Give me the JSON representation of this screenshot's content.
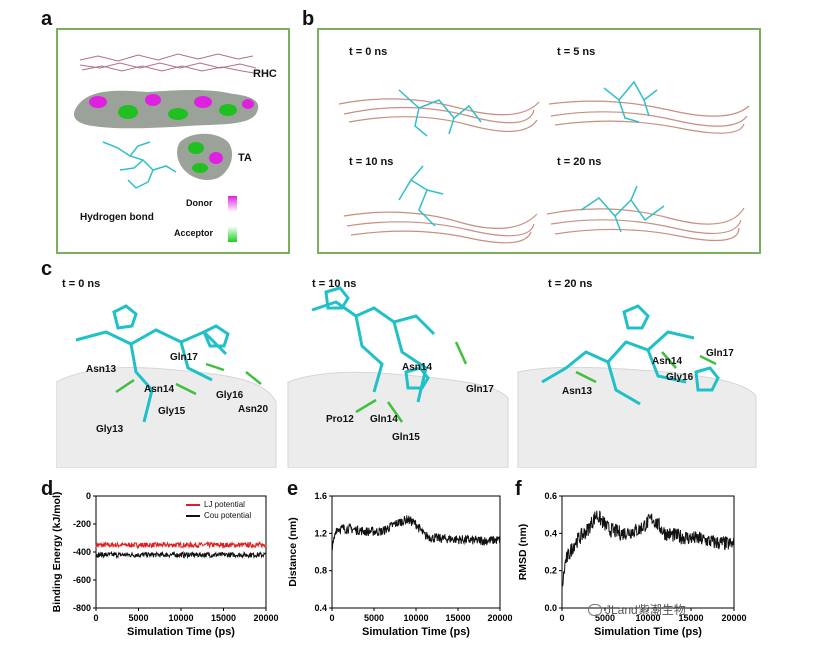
{
  "panels": {
    "a": {
      "letter": "a",
      "rhc_label": "RHC",
      "ta_label": "TA",
      "donor_label": "Donor",
      "acceptor_label": "Acceptor",
      "hbond_label": "Hydrogen bond",
      "colors": {
        "border": "#7bb05a",
        "donor": "#e020e0",
        "acceptor": "#20d020"
      }
    },
    "b": {
      "letter": "b",
      "times": [
        "t = 0 ns",
        "t = 5 ns",
        "t = 10 ns",
        "t = 20 ns"
      ]
    },
    "c": {
      "letter": "c",
      "frames": [
        {
          "time": "t = 0 ns",
          "residues": [
            "Gln17",
            "Asn13",
            "Asn14",
            "Gly16",
            "Gly15",
            "Asn20",
            "Gly13"
          ]
        },
        {
          "time": "t = 10 ns",
          "residues": [
            "Asn14",
            "Gln17",
            "Pro12",
            "Gln14",
            "Gln15"
          ]
        },
        {
          "time": "t = 20 ns",
          "residues": [
            "Asn14",
            "Gln17",
            "Gly16",
            "Asn13"
          ]
        }
      ]
    },
    "d": {
      "letter": "d"
    },
    "e": {
      "letter": "e"
    },
    "f": {
      "letter": "f"
    }
  },
  "watermark": "JLand紫潮生物",
  "chart_data": [
    {
      "type": "line",
      "panel": "d",
      "xlabel": "Simulation Time (ps)",
      "ylabel": "Binding Energy (kJ/mol)",
      "xlim": [
        0,
        20000
      ],
      "ylim": [
        -800,
        0
      ],
      "xticks": [
        "0",
        "5000",
        "10000",
        "15000",
        "20000"
      ],
      "yticks": [
        "0",
        "-200",
        "-400",
        "-600",
        "-800"
      ],
      "legend": "top-right",
      "series": [
        {
          "name": "LJ potential",
          "color": "#e02020",
          "mean": -350,
          "noise": 18
        },
        {
          "name": "Cou potential",
          "color": "#111111",
          "mean": -420,
          "noise": 18
        }
      ]
    },
    {
      "type": "line",
      "panel": "e",
      "xlabel": "Simulation Time (ps)",
      "ylabel": "Distance (nm)",
      "xlim": [
        0,
        20000
      ],
      "ylim": [
        0.4,
        1.6
      ],
      "xticks": [
        "0",
        "5000",
        "10000",
        "15000",
        "20000"
      ],
      "yticks": [
        "1.6",
        "1.2",
        "0.8",
        "0.4"
      ],
      "series": [
        {
          "name": "",
          "color": "#111111",
          "points": [
            [
              0,
              1.02
            ],
            [
              500,
              1.25
            ],
            [
              2000,
              1.25
            ],
            [
              4000,
              1.22
            ],
            [
              6000,
              1.22
            ],
            [
              7500,
              1.3
            ],
            [
              9000,
              1.35
            ],
            [
              10000,
              1.3
            ],
            [
              11000,
              1.18
            ],
            [
              12000,
              1.15
            ],
            [
              14000,
              1.14
            ],
            [
              16000,
              1.13
            ],
            [
              18000,
              1.12
            ],
            [
              20000,
              1.13
            ]
          ],
          "noise": 0.05
        }
      ]
    },
    {
      "type": "line",
      "panel": "f",
      "xlabel": "Simulation Time (ps)",
      "ylabel": "RMSD (nm)",
      "xlim": [
        0,
        20000
      ],
      "ylim": [
        0,
        0.6
      ],
      "xticks": [
        "0",
        "5000",
        "10000",
        "15000",
        "20000"
      ],
      "yticks": [
        "0.6",
        "0.4",
        "0.2",
        "0.0"
      ],
      "series": [
        {
          "name": "",
          "color": "#111111",
          "points": [
            [
              0,
              0.1
            ],
            [
              400,
              0.25
            ],
            [
              1500,
              0.35
            ],
            [
              3000,
              0.42
            ],
            [
              4000,
              0.5
            ],
            [
              5500,
              0.42
            ],
            [
              7000,
              0.4
            ],
            [
              9000,
              0.42
            ],
            [
              10500,
              0.48
            ],
            [
              12000,
              0.4
            ],
            [
              14000,
              0.38
            ],
            [
              16000,
              0.37
            ],
            [
              18000,
              0.35
            ],
            [
              20000,
              0.34
            ]
          ],
          "noise": 0.04
        }
      ]
    }
  ]
}
